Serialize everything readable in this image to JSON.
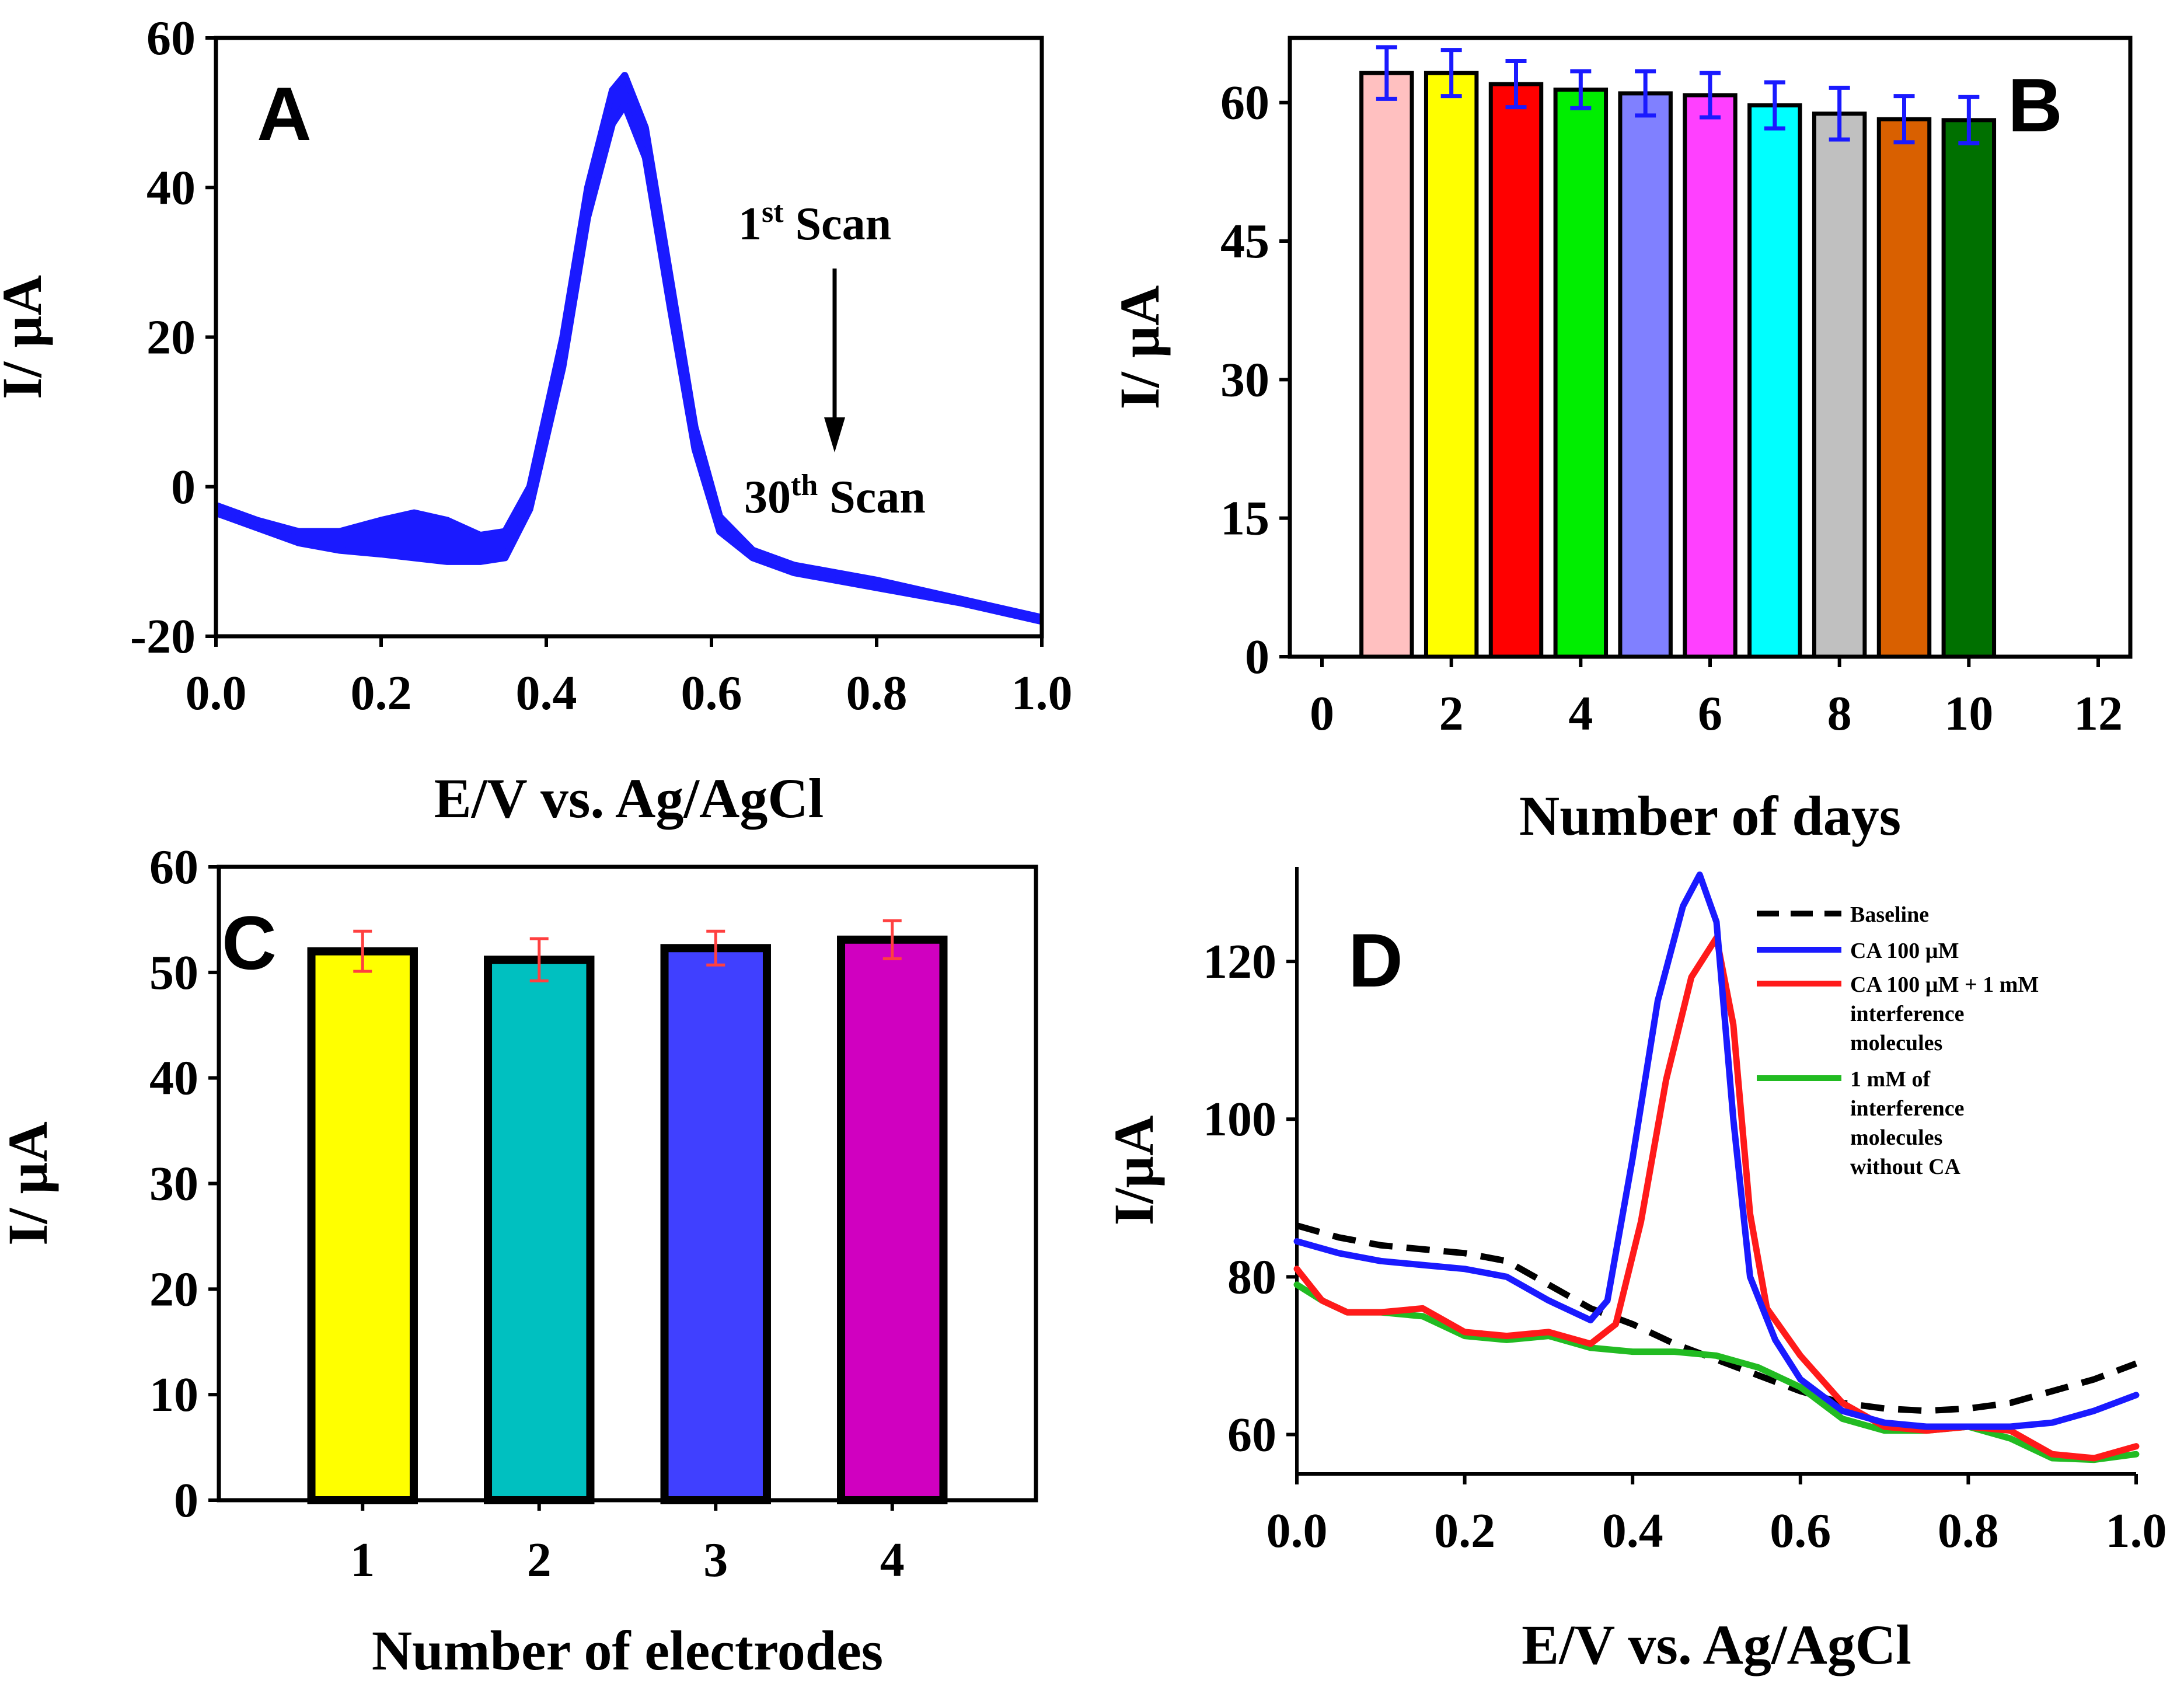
{
  "chart_data": [
    {
      "type": "line",
      "panel": "A",
      "title": "",
      "xlabel": "E/V vs. Ag/AgCl",
      "ylabel": "I/ µA",
      "xlim": [
        0.0,
        1.0
      ],
      "ylim": [
        -20,
        60
      ],
      "xticks": [
        0.0,
        0.2,
        0.4,
        0.6,
        0.8,
        1.0
      ],
      "xtick_labels": [
        "0.0",
        "0.2",
        "0.4",
        "0.6",
        "0.8",
        "1.0"
      ],
      "yticks": [
        -20,
        0,
        20,
        40,
        60
      ],
      "ytick_labels": [
        "-20",
        "0",
        "20",
        "40",
        "60"
      ],
      "color": "#1a1aff",
      "series": [
        {
          "name": "1st Scan",
          "x": [
            0.0,
            0.05,
            0.1,
            0.15,
            0.2,
            0.24,
            0.28,
            0.32,
            0.35,
            0.38,
            0.42,
            0.45,
            0.48,
            0.495,
            0.52,
            0.55,
            0.58,
            0.61,
            0.65,
            0.7,
            0.8,
            0.9,
            1.0
          ],
          "y": [
            -2.5,
            -4.5,
            -6.0,
            -6.0,
            -4.5,
            -3.5,
            -4.5,
            -6.5,
            -6.0,
            0.0,
            20.0,
            40.0,
            53.0,
            55.0,
            48.0,
            28.0,
            8.0,
            -4.0,
            -8.5,
            -10.5,
            -12.5,
            -15.0,
            -17.5
          ]
        },
        {
          "name": "30th Scan",
          "x": [
            0.0,
            0.05,
            0.1,
            0.15,
            0.2,
            0.24,
            0.28,
            0.32,
            0.35,
            0.38,
            0.42,
            0.45,
            0.48,
            0.495,
            0.52,
            0.55,
            0.58,
            0.61,
            0.65,
            0.7,
            0.8,
            0.9,
            1.0
          ],
          "y": [
            -3.5,
            -5.5,
            -7.5,
            -8.5,
            -9.0,
            -9.5,
            -10.0,
            -10.0,
            -9.5,
            -3.0,
            16.0,
            36.0,
            48.5,
            51.0,
            44.0,
            24.0,
            5.0,
            -6.0,
            -9.5,
            -11.5,
            -13.5,
            -15.5,
            -18.0
          ]
        }
      ],
      "annotations": {
        "start_num": "1",
        "start_sup": "st",
        "start_rest": " Scan",
        "end_num": "30",
        "end_sup": "th",
        "end_rest": " Scan"
      }
    },
    {
      "type": "bar",
      "panel": "B",
      "title": "",
      "xlabel": "Number of days",
      "ylabel": "I/ µA",
      "xlim": [
        0,
        12
      ],
      "ylim": [
        0,
        67
      ],
      "xticks": [
        0,
        2,
        4,
        6,
        8,
        10,
        12
      ],
      "xtick_labels": [
        "0",
        "2",
        "4",
        "6",
        "8",
        "10",
        "12"
      ],
      "yticks": [
        0,
        15,
        30,
        45,
        60
      ],
      "ytick_labels": [
        "0",
        "15",
        "30",
        "45",
        "60"
      ],
      "categories": [
        1,
        2,
        3,
        4,
        5,
        6,
        7,
        8,
        9,
        10
      ],
      "values": [
        63.2,
        63.2,
        62.0,
        61.4,
        61.0,
        60.8,
        59.7,
        58.8,
        58.2,
        58.1
      ],
      "errors": [
        2.8,
        2.5,
        2.5,
        2.0,
        2.4,
        2.4,
        2.5,
        2.8,
        2.5,
        2.5
      ],
      "bar_colors": [
        "#ffc0c0",
        "#ffff00",
        "#ff0000",
        "#00ee00",
        "#8080ff",
        "#ff40ff",
        "#00ffff",
        "#c0c0c0",
        "#d96000",
        "#007000"
      ],
      "error_color": "#1a1aff"
    },
    {
      "type": "bar",
      "panel": "C",
      "title": "",
      "xlabel": "Number of electrodes",
      "ylabel": "I/ µA",
      "ylim": [
        0,
        60
      ],
      "yticks": [
        0,
        10,
        20,
        30,
        40,
        50,
        60
      ],
      "ytick_labels": [
        "0",
        "10",
        "20",
        "30",
        "40",
        "50",
        "60"
      ],
      "categories": [
        "1",
        "2",
        "3",
        "4"
      ],
      "values": [
        52.0,
        51.2,
        52.3,
        53.1
      ],
      "errors": [
        1.9,
        2.0,
        1.6,
        1.8
      ],
      "bar_colors": [
        "#ffff00",
        "#00c0c0",
        "#4040ff",
        "#d000c0"
      ],
      "error_color": "#ff4040"
    },
    {
      "type": "line",
      "panel": "D",
      "title": "",
      "xlabel": "E/V vs. Ag/AgCl",
      "ylabel": "I/µA",
      "xlim": [
        0.0,
        1.0
      ],
      "ylim": [
        55,
        132
      ],
      "xticks": [
        0.0,
        0.2,
        0.4,
        0.6,
        0.8,
        1.0
      ],
      "xtick_labels": [
        "0.0",
        "0.2",
        "0.4",
        "0.6",
        "0.8",
        "1.0"
      ],
      "yticks": [
        60,
        80,
        100,
        120
      ],
      "ytick_labels": [
        "60",
        "80",
        "100",
        "120"
      ],
      "legend_position": "top-right",
      "series": [
        {
          "name": "Baseline",
          "legend_lines": [
            "Baseline"
          ],
          "color": "#000000",
          "dash": true,
          "x": [
            0.0,
            0.05,
            0.1,
            0.15,
            0.2,
            0.25,
            0.3,
            0.35,
            0.4,
            0.45,
            0.5,
            0.55,
            0.6,
            0.65,
            0.7,
            0.75,
            0.8,
            0.85,
            0.9,
            0.95,
            1.0
          ],
          "y": [
            86.5,
            85.0,
            84.0,
            83.5,
            83.0,
            82.0,
            79.0,
            76.0,
            74.0,
            71.5,
            69.5,
            67.5,
            65.5,
            64.0,
            63.3,
            63.0,
            63.3,
            64.0,
            65.5,
            67.0,
            69.0
          ]
        },
        {
          "name": "CA 100 µM",
          "legend_lines": [
            "CA 100 µM"
          ],
          "color": "#1a1aff",
          "dash": false,
          "x": [
            0.0,
            0.05,
            0.1,
            0.15,
            0.2,
            0.25,
            0.3,
            0.35,
            0.37,
            0.4,
            0.43,
            0.46,
            0.48,
            0.5,
            0.52,
            0.54,
            0.57,
            0.6,
            0.65,
            0.7,
            0.75,
            0.8,
            0.85,
            0.9,
            0.95,
            1.0
          ],
          "y": [
            84.5,
            83.0,
            82.0,
            81.5,
            81.0,
            80.0,
            77.0,
            74.5,
            77.0,
            95.0,
            115.0,
            127.0,
            131.0,
            125.0,
            100.0,
            80.0,
            72.0,
            67.0,
            63.0,
            61.5,
            61.0,
            61.0,
            61.0,
            61.5,
            63.0,
            65.0
          ]
        },
        {
          "name": "CA 100 µM + 1 mM interference molecules",
          "legend_lines": [
            "CA 100 µM + 1 mM",
            "interference",
            "molecules"
          ],
          "color": "#ff1a1a",
          "dash": false,
          "x": [
            0.0,
            0.03,
            0.06,
            0.1,
            0.15,
            0.2,
            0.25,
            0.3,
            0.35,
            0.38,
            0.41,
            0.44,
            0.47,
            0.5,
            0.52,
            0.54,
            0.56,
            0.6,
            0.65,
            0.7,
            0.75,
            0.8,
            0.85,
            0.9,
            0.95,
            1.0
          ],
          "y": [
            81.0,
            77.0,
            75.5,
            75.5,
            76.0,
            73.0,
            72.5,
            73.0,
            71.5,
            74.0,
            87.0,
            105.0,
            118.0,
            123.0,
            112.0,
            88.0,
            76.0,
            70.0,
            64.0,
            61.0,
            60.5,
            61.0,
            60.5,
            57.5,
            57.0,
            58.5
          ]
        },
        {
          "name": "1 mM of interference molecules without CA",
          "legend_lines": [
            "1 mM of",
            "interference",
            "molecules",
            "without CA"
          ],
          "color": "#22bb22",
          "dash": false,
          "x": [
            0.0,
            0.03,
            0.06,
            0.1,
            0.15,
            0.2,
            0.25,
            0.3,
            0.35,
            0.4,
            0.45,
            0.5,
            0.55,
            0.6,
            0.65,
            0.7,
            0.75,
            0.8,
            0.85,
            0.9,
            0.95,
            1.0
          ],
          "y": [
            79.0,
            77.0,
            75.5,
            75.5,
            75.0,
            72.5,
            72.0,
            72.5,
            71.0,
            70.5,
            70.5,
            70.0,
            68.5,
            66.0,
            62.0,
            60.5,
            60.5,
            61.0,
            59.5,
            57.0,
            56.8,
            57.5
          ]
        }
      ]
    }
  ],
  "panel_labels": [
    "A",
    "B",
    "C",
    "D"
  ]
}
